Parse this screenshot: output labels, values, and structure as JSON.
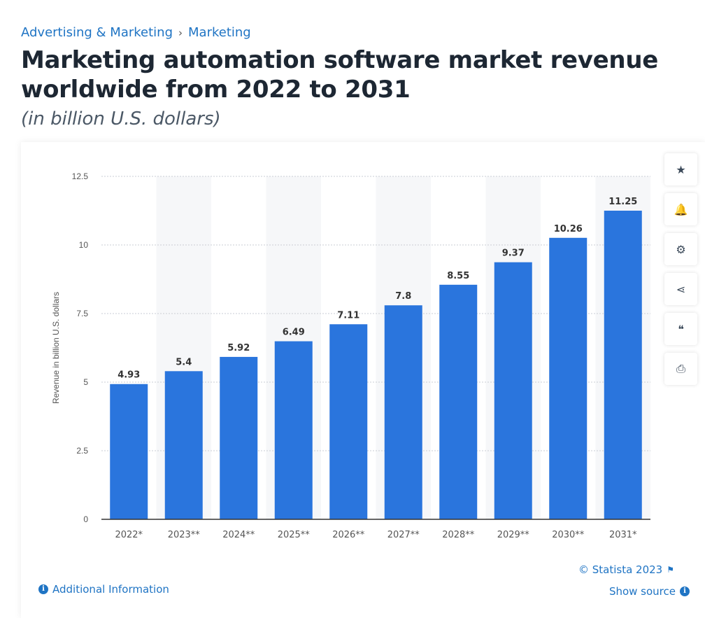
{
  "breadcrumb": [
    "Advertising & Marketing",
    "Marketing"
  ],
  "breadcrumb_separator": "›",
  "title": "Marketing automation software market revenue worldwide from 2022 to 2031",
  "subtitle": "(in billion U.S. dollars)",
  "side_buttons": [
    {
      "icon": "star-icon",
      "glyph": "★"
    },
    {
      "icon": "bell-icon",
      "glyph": "🔔"
    },
    {
      "icon": "gear-icon",
      "glyph": "⚙"
    },
    {
      "icon": "share-icon",
      "glyph": "⋖"
    },
    {
      "icon": "quote-icon",
      "glyph": "❝"
    },
    {
      "icon": "print-icon",
      "glyph": "⎙"
    }
  ],
  "footer": {
    "copyright": "© Statista 2023",
    "additional_info": "Additional Information",
    "show_source": "Show source"
  },
  "colors": {
    "bar": "#2a75dd",
    "band": "#f6f7f9",
    "link": "#1f74c4"
  },
  "chart_data": {
    "type": "bar",
    "categories": [
      "2022*",
      "2023**",
      "2024**",
      "2025**",
      "2026**",
      "2027**",
      "2028**",
      "2029**",
      "2030**",
      "2031*"
    ],
    "values": [
      4.93,
      5.4,
      5.92,
      6.49,
      7.11,
      7.8,
      8.55,
      9.37,
      10.26,
      11.25
    ],
    "ylabel": "Revenue in billion U.S. dollars",
    "ylim": [
      0,
      12.5
    ],
    "yticks": [
      0,
      2.5,
      5,
      7.5,
      10,
      12.5
    ],
    "ytick_labels": [
      "0",
      "2.5",
      "5",
      "7.5",
      "10",
      "12.5"
    ],
    "grid": true,
    "data_labels": true
  }
}
